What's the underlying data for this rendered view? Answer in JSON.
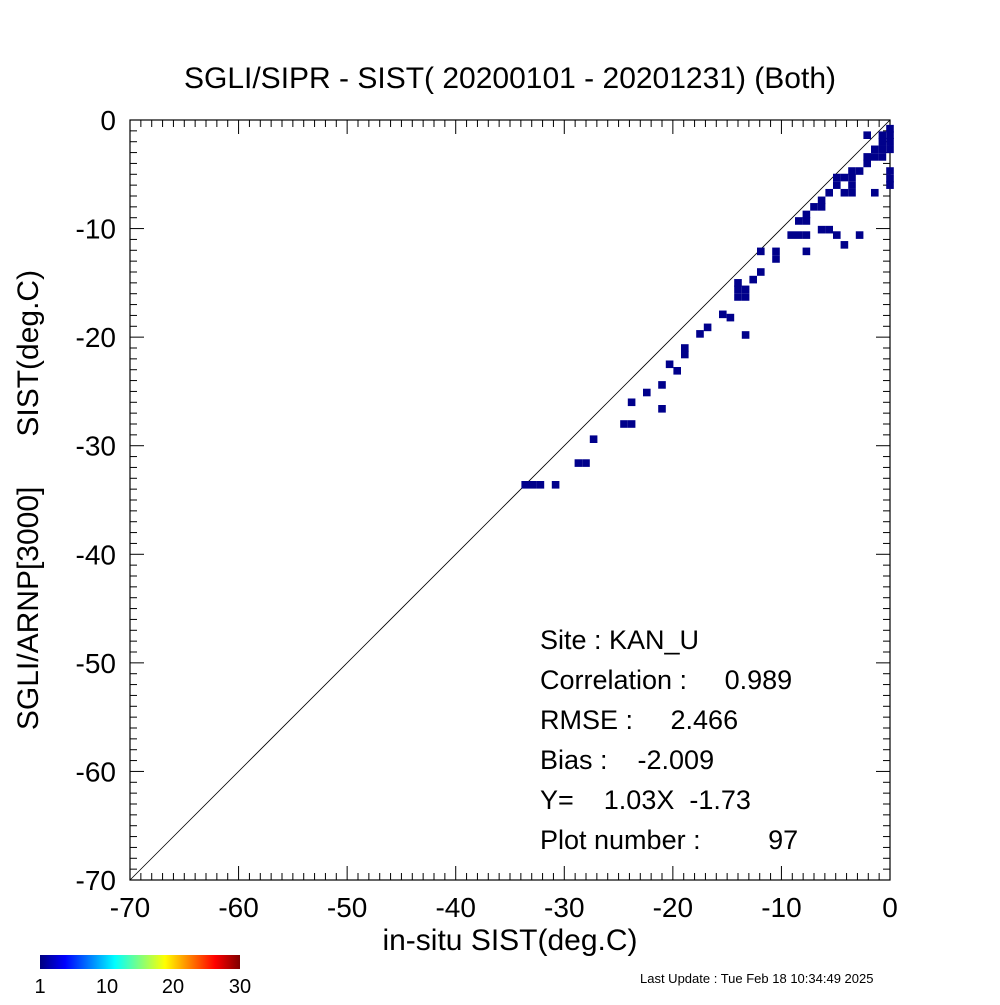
{
  "chart_data": {
    "type": "heatmap",
    "title": "SGLI/SIPR - SIST( 20200101 - 20201231) (Both)",
    "xlabel": "in-situ SIST(deg.C)",
    "ylabel": "SGLI/ARNP[3000]      SIST(deg.C)",
    "xlim": [
      -70,
      0
    ],
    "ylim": [
      -70,
      0
    ],
    "x_ticks": [
      "-70",
      "-60",
      "-50",
      "-40",
      "-30",
      "-20",
      "-10",
      "0"
    ],
    "y_ticks": [
      "-70",
      "-60",
      "-50",
      "-40",
      "-30",
      "-20",
      "-10",
      "0"
    ],
    "reference_line": "1:1",
    "cell_size": 0.7,
    "cell_color": "#00008b",
    "points": [
      [
        -33.6,
        -33.6
      ],
      [
        -32.9,
        -33.6
      ],
      [
        -32.2,
        -33.6
      ],
      [
        -30.8,
        -33.6
      ],
      [
        -28.7,
        -31.6
      ],
      [
        -28.0,
        -31.6
      ],
      [
        -27.3,
        -29.4
      ],
      [
        -24.5,
        -28.0
      ],
      [
        -23.8,
        -28.0
      ],
      [
        -23.8,
        -26.0
      ],
      [
        -22.4,
        -25.1
      ],
      [
        -21.0,
        -24.4
      ],
      [
        -21.0,
        -26.6
      ],
      [
        -20.3,
        -22.5
      ],
      [
        -19.6,
        -23.1
      ],
      [
        -18.9,
        -21.6
      ],
      [
        -18.9,
        -21.0
      ],
      [
        -17.5,
        -19.7
      ],
      [
        -16.8,
        -19.1
      ],
      [
        -15.4,
        -17.9
      ],
      [
        -14.7,
        -18.2
      ],
      [
        -14.0,
        -15.0
      ],
      [
        -14.0,
        -15.6
      ],
      [
        -14.0,
        -16.3
      ],
      [
        -13.3,
        -15.6
      ],
      [
        -13.3,
        -16.3
      ],
      [
        -13.3,
        -19.8
      ],
      [
        -12.6,
        -14.7
      ],
      [
        -11.9,
        -14.0
      ],
      [
        -11.9,
        -12.1
      ],
      [
        -10.5,
        -12.1
      ],
      [
        -10.5,
        -12.8
      ],
      [
        -9.1,
        -10.6
      ],
      [
        -8.4,
        -10.6
      ],
      [
        -8.4,
        -9.3
      ],
      [
        -7.7,
        -10.6
      ],
      [
        -7.7,
        -9.3
      ],
      [
        -7.7,
        -8.7
      ],
      [
        -7.7,
        -12.1
      ],
      [
        -7.0,
        -8.0
      ],
      [
        -6.3,
        -8.0
      ],
      [
        -6.3,
        -7.4
      ],
      [
        -6.3,
        -10.1
      ],
      [
        -5.6,
        -10.1
      ],
      [
        -5.6,
        -6.7
      ],
      [
        -4.9,
        -10.6
      ],
      [
        -4.9,
        -6.0
      ],
      [
        -4.9,
        -5.3
      ],
      [
        -4.2,
        -5.3
      ],
      [
        -4.2,
        -6.7
      ],
      [
        -4.2,
        -11.5
      ],
      [
        -3.5,
        -5.3
      ],
      [
        -3.5,
        -6.0
      ],
      [
        -3.5,
        -6.7
      ],
      [
        -3.5,
        -4.7
      ],
      [
        -2.8,
        -4.7
      ],
      [
        -2.8,
        -10.6
      ],
      [
        -2.1,
        -3.4
      ],
      [
        -2.1,
        -4.0
      ],
      [
        -2.1,
        -1.4
      ],
      [
        -1.4,
        -2.7
      ],
      [
        -1.4,
        -3.4
      ],
      [
        -1.4,
        -6.7
      ],
      [
        -0.7,
        -2.0
      ],
      [
        -0.7,
        -2.7
      ],
      [
        -0.7,
        -3.4
      ],
      [
        -0.7,
        -1.4
      ],
      [
        0.0,
        -1.4
      ],
      [
        0.0,
        -0.8
      ],
      [
        0.0,
        -2.0
      ],
      [
        0.0,
        -2.7
      ],
      [
        0.0,
        -4.7
      ],
      [
        0.0,
        -5.4
      ],
      [
        0.0,
        -6.0
      ]
    ],
    "colorbar": {
      "ticks": [
        "1",
        "10",
        "20",
        "30"
      ],
      "colors": [
        "#00007f",
        "#0000ff",
        "#007fff",
        "#00ffff",
        "#7fff7f",
        "#ffff00",
        "#ff7f00",
        "#ff0000",
        "#7f0000"
      ]
    },
    "stats": {
      "site": "Site : KAN_U",
      "correlation": "Correlation :     0.989",
      "rmse": "RMSE :     2.466",
      "bias": "Bias :    -2.009",
      "regression": "Y=    1.03X  -1.73",
      "plot_number": "Plot number :         97"
    }
  },
  "footer": {
    "last_update": "Last Update : Tue Feb 18 10:34:49 2025"
  }
}
